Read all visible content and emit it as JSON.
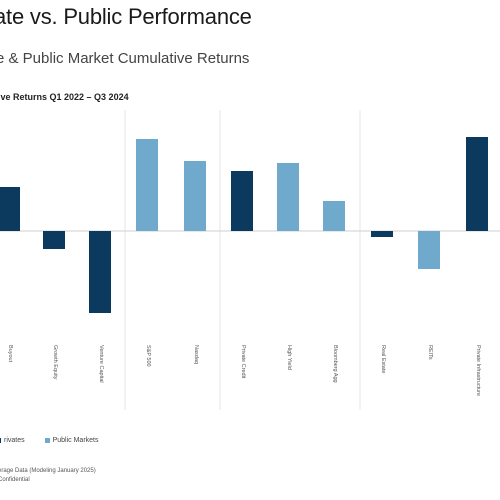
{
  "header": {
    "title": "ate vs. Public Performance",
    "subtitle": "e & Public Market Cumulative Returns",
    "chart_heading": "ive Returns Q1 2022 – Q3 2024"
  },
  "legend": {
    "private_label": "rivates",
    "public_label": "Public Markets"
  },
  "footer": {
    "source_line1": "erage Data (Modeling January 2025)",
    "source_line2": "Confidential"
  },
  "colors": {
    "private": "#0c3a5e",
    "public": "#6fa9cc",
    "divider": "#e6e6e6",
    "zero_line": "#cfcfcf"
  },
  "chart_data": {
    "type": "bar",
    "categories": [
      "Buyout",
      "Growth Equity",
      "Venture Capital",
      "S&P 500",
      "Nasdaq",
      "Private Credit",
      "High Yield",
      "Bloomberg Agg",
      "Real Estate",
      "REITs",
      "Private Infrastructure"
    ],
    "series": [
      {
        "name": "rivates",
        "values": [
          11,
          null,
          null,
          null,
          null,
          15,
          null,
          null,
          -1.5,
          null,
          23.5
        ]
      },
      {
        "name": "Public Markets",
        "values": [
          null,
          null,
          null,
          23,
          17.5,
          null,
          17,
          7.5,
          null,
          -9.5,
          null
        ]
      }
    ],
    "private_values_extra": {
      "Growth Equity": -4.5,
      "Venture Capital": -20.5
    },
    "ylim": [
      -25,
      25
    ],
    "grid": false
  }
}
